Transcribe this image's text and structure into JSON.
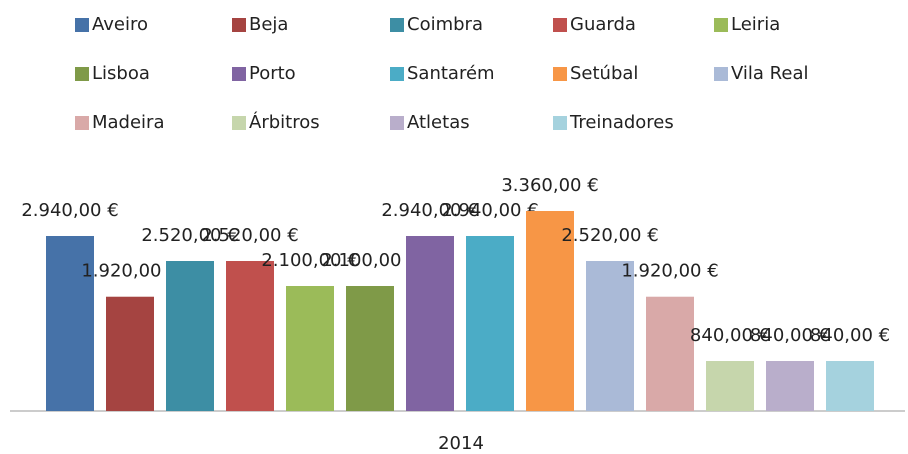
{
  "chart_data": {
    "type": "bar",
    "categories": [
      "2014"
    ],
    "series": [
      {
        "name": "Aveiro",
        "color": "#4672a8",
        "values": [
          2940
        ],
        "value_labels": [
          "2.940,00 €"
        ]
      },
      {
        "name": "Beja",
        "color": "#a54441",
        "values": [
          1920
        ],
        "value_labels": [
          "1.920,00 €"
        ]
      },
      {
        "name": "Coimbra",
        "color": "#3d8ea4",
        "values": [
          2520
        ],
        "value_labels": [
          "2.520,00 €"
        ]
      },
      {
        "name": "Guarda",
        "color": "#c0504d",
        "values": [
          2520
        ],
        "value_labels": [
          "2.520,00 €"
        ]
      },
      {
        "name": "Leiria",
        "color": "#9bbb59",
        "values": [
          2100
        ],
        "value_labels": [
          "2.100,00 €"
        ]
      },
      {
        "name": "Lisboa",
        "color": "#7f9a48",
        "values": [
          2100
        ],
        "value_labels": [
          "2.100,00 €"
        ]
      },
      {
        "name": "Porto",
        "color": "#8064a2",
        "values": [
          2940
        ],
        "value_labels": [
          "2.940,00 €"
        ]
      },
      {
        "name": "Santarém",
        "color": "#4bacc6",
        "values": [
          2940
        ],
        "value_labels": [
          "2.940,00 €"
        ]
      },
      {
        "name": "Setúbal",
        "color": "#f79646",
        "values": [
          3360
        ],
        "value_labels": [
          "3.360,00 €"
        ]
      },
      {
        "name": "Vila Real",
        "color": "#aabad7",
        "values": [
          2520
        ],
        "value_labels": [
          "2.520,00 €"
        ]
      },
      {
        "name": "Madeira",
        "color": "#d9a9a8",
        "values": [
          1920
        ],
        "value_labels": [
          "1.920,00 €"
        ]
      },
      {
        "name": "Árbitros",
        "color": "#c6d6ac",
        "values": [
          840
        ],
        "value_labels": [
          "840,00 €"
        ]
      },
      {
        "name": "Atletas",
        "color": "#b9aecb",
        "values": [
          840
        ],
        "value_labels": [
          "840,00 €"
        ]
      },
      {
        "name": "Treinadores",
        "color": "#a5d2de",
        "values": [
          840
        ],
        "value_labels": [
          "840,00 €"
        ]
      }
    ]
  }
}
